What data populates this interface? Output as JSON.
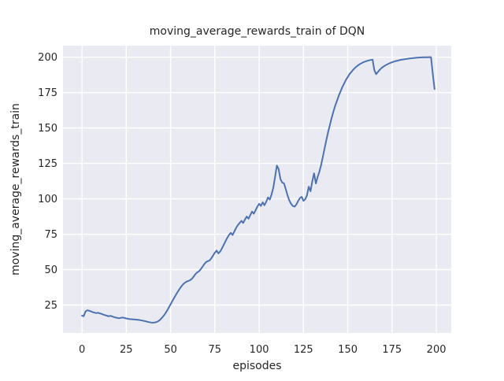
{
  "figure": {
    "title": "moving_average_rewards_train of DQN",
    "xlabel": "episodes",
    "ylabel": "moving_average_rewards_train"
  },
  "style": {
    "axes_background": "#eaeaf2",
    "grid_color": "#ffffff",
    "line_color": "#4c72b0",
    "text_color": "#262626",
    "figure_background": "#ffffff"
  },
  "chart_data": {
    "type": "line",
    "title": "moving_average_rewards_train of DQN",
    "xlabel": "episodes",
    "ylabel": "moving_average_rewards_train",
    "grid": true,
    "legend": null,
    "x_ticks": [
      0,
      25,
      50,
      75,
      100,
      125,
      150,
      175,
      200
    ],
    "y_ticks": [
      25,
      50,
      75,
      100,
      125,
      150,
      175,
      200
    ],
    "xlim": [
      -10.7,
      208.4
    ],
    "ylim": [
      5.3,
      208.1
    ],
    "series": [
      {
        "name": "moving_average_rewards_train",
        "x_start": 0,
        "x_step": 1,
        "values": [
          17.5,
          17.2,
          20.5,
          21.3,
          21.0,
          20.6,
          20.1,
          19.7,
          19.3,
          19.6,
          19.2,
          18.8,
          18.3,
          17.9,
          17.5,
          17.1,
          17.4,
          17.0,
          16.6,
          16.2,
          15.9,
          15.7,
          16.0,
          16.2,
          15.9,
          15.6,
          15.3,
          15.1,
          15.0,
          14.9,
          14.8,
          14.7,
          14.5,
          14.3,
          14.1,
          13.8,
          13.5,
          13.2,
          12.9,
          12.7,
          12.6,
          12.7,
          13.0,
          13.6,
          14.5,
          15.8,
          17.3,
          19.0,
          21.0,
          23.2,
          25.5,
          27.8,
          30.0,
          32.2,
          34.3,
          36.2,
          38.0,
          39.5,
          40.7,
          41.5,
          42.0,
          42.5,
          43.5,
          45.0,
          46.8,
          48.0,
          48.8,
          50.2,
          52.0,
          53.8,
          55.3,
          56.0,
          56.5,
          58.0,
          60.0,
          62.0,
          63.5,
          61.5,
          62.8,
          65.0,
          67.5,
          70.0,
          72.5,
          74.5,
          76.0,
          74.5,
          77.0,
          79.5,
          81.5,
          83.0,
          84.5,
          83.0,
          85.5,
          87.5,
          86.0,
          88.5,
          91.0,
          89.5,
          92.0,
          94.5,
          96.5,
          95.0,
          97.5,
          95.5,
          98.0,
          101.0,
          99.5,
          103.0,
          108.0,
          115.5,
          123.5,
          121.0,
          114.0,
          111.5,
          111.0,
          107.0,
          102.5,
          99.0,
          96.5,
          95.0,
          94.5,
          96.0,
          98.5,
          100.5,
          101.4,
          98.6,
          99.7,
          102.5,
          108.6,
          105.3,
          112.5,
          118.0,
          110.8,
          115.3,
          119.2,
          124.0,
          130.0,
          136.0,
          142.0,
          147.5,
          152.5,
          157.5,
          162.0,
          166.0,
          169.5,
          173.0,
          176.0,
          179.0,
          181.5,
          184.0,
          186.0,
          188.0,
          189.5,
          191.0,
          192.3,
          193.4,
          194.4,
          195.2,
          195.9,
          196.5,
          197.0,
          197.4,
          197.7,
          198.0,
          198.2,
          191.0,
          188.0,
          189.5,
          191.0,
          192.2,
          193.2,
          194.0,
          194.7,
          195.3,
          195.9,
          196.4,
          196.8,
          197.2,
          197.5,
          197.8,
          198.1,
          198.3,
          198.5,
          198.7,
          198.9,
          199.1,
          199.2,
          199.3,
          199.5,
          199.6,
          199.7,
          199.75,
          199.8,
          199.85,
          199.9,
          199.95,
          200.0,
          200.0,
          188.0,
          177.5
        ]
      }
    ]
  }
}
